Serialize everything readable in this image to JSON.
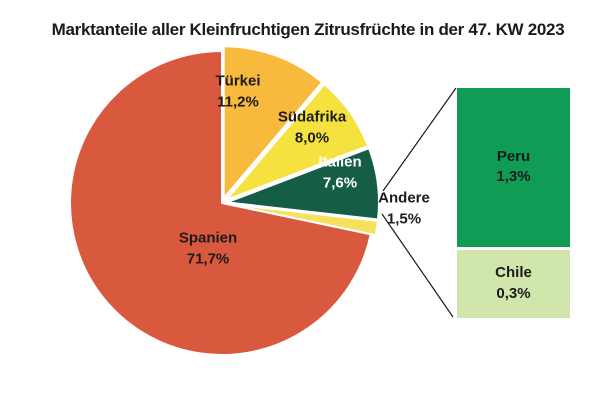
{
  "title": "Marktanteile aller Kleinfruchtigen Zitrusfrüchte in der 47. KW 2023",
  "chart_data": [
    {
      "type": "pie",
      "title": "Marktanteile aller Kleinfruchtigen Zitrusfrüchte in der 47. KW 2023",
      "unit": "percent",
      "start_angle": "12-oclock",
      "direction": "clockwise",
      "slices": [
        {
          "id": "tuerkei",
          "label": "Türkei",
          "value": 11.2,
          "display": "11,2%",
          "color": "#F8BA3D",
          "text_color": "#1b1b1b"
        },
        {
          "id": "suedafrika",
          "label": "Südafrika",
          "value": 8.0,
          "display": "8,0%",
          "color": "#F5E23E",
          "text_color": "#1b1b1b"
        },
        {
          "id": "italien",
          "label": "Italien",
          "value": 7.6,
          "display": "7,6%",
          "color": "#165D48",
          "text_color": "#ffffff"
        },
        {
          "id": "andere",
          "label": "Andere",
          "value": 1.5,
          "display": "1,5%",
          "color": "#F5E15A",
          "text_color": "#1b1b1b"
        },
        {
          "id": "spanien",
          "label": "Spanien",
          "value": 71.7,
          "display": "71,7%",
          "color": "#D9593F",
          "text_color": "#1b1b1b"
        }
      ]
    },
    {
      "type": "bar",
      "segments": [
        {
          "id": "peru",
          "label": "Peru",
          "value": 1.3,
          "display": "1,3%",
          "color": "#109C55",
          "text_color": "#1b1b1b"
        },
        {
          "id": "chile",
          "label": "Chile",
          "value": 0.3,
          "display": "0,3%",
          "color": "#D1E6AD",
          "text_color": "#1b1b1b"
        }
      ]
    }
  ]
}
